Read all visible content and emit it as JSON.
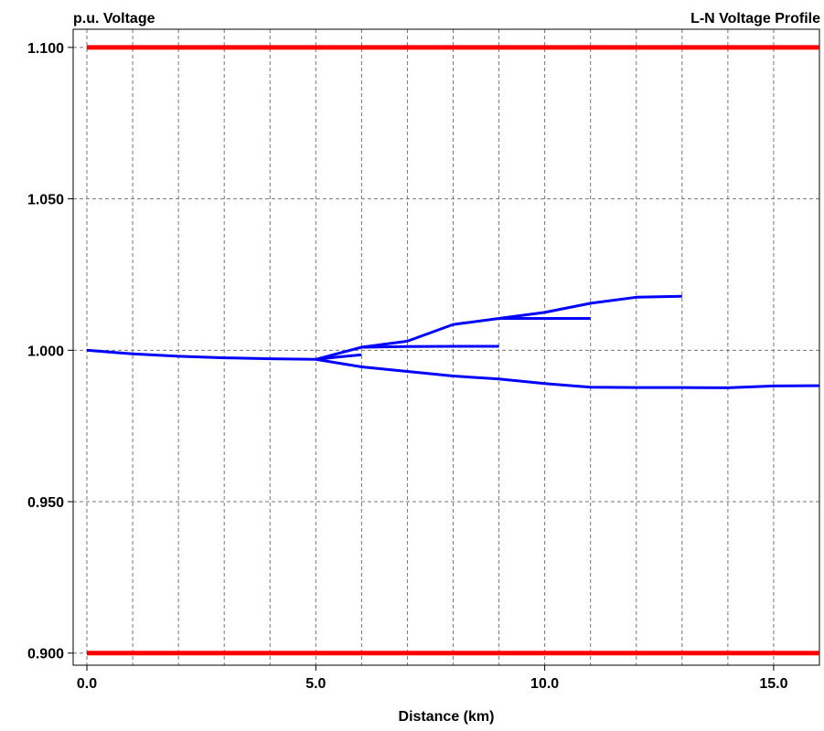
{
  "chart_data": {
    "type": "line",
    "title": "L-N Voltage Profile",
    "ylabel": "p.u. Voltage",
    "xlabel": "Distance (km)",
    "xlim": [
      -0.3,
      16.0
    ],
    "ylim": [
      0.896,
      1.106
    ],
    "grid": true,
    "x_ticks": [
      0,
      5,
      10,
      15
    ],
    "x_tick_labels": [
      "0.0",
      "5.0",
      "10.0",
      "15.0"
    ],
    "x_minor_gridlines": [
      1,
      2,
      3,
      4,
      6,
      7,
      8,
      9,
      11,
      12,
      13,
      14
    ],
    "y_ticks": [
      0.9,
      0.95,
      1.0,
      1.05,
      1.1
    ],
    "y_tick_labels": [
      "0.900",
      "0.950",
      "1.000",
      "1.050",
      "1.100"
    ],
    "limit_lines": [
      {
        "y": 1.1,
        "color": "#ff0000"
      },
      {
        "y": 0.9,
        "color": "#ff0000"
      }
    ],
    "series_color": "#0000ff",
    "series": [
      {
        "x": [
          0,
          1,
          2,
          3,
          4,
          5
        ],
        "y": [
          1.0,
          0.9988,
          0.998,
          0.9975,
          0.9972,
          0.997
        ]
      },
      {
        "x": [
          5,
          5.5,
          6
        ],
        "y": [
          0.997,
          0.9978,
          0.9985
        ]
      },
      {
        "x": [
          5,
          6,
          7,
          8,
          9,
          10,
          11,
          12,
          13
        ],
        "y": [
          0.997,
          1.001,
          1.003,
          1.0085,
          1.0105,
          1.0125,
          1.0155,
          1.0175,
          1.0178
        ]
      },
      {
        "x": [
          6,
          7,
          8,
          9
        ],
        "y": [
          1.001,
          1.0012,
          1.0013,
          1.0013
        ]
      },
      {
        "x": [
          9,
          10,
          11
        ],
        "y": [
          1.0105,
          1.0105,
          1.0105
        ]
      },
      {
        "x": [
          5,
          6,
          7,
          8,
          9,
          10,
          11,
          12,
          13,
          14,
          15,
          16
        ],
        "y": [
          0.997,
          0.9945,
          0.993,
          0.9915,
          0.9905,
          0.989,
          0.9878,
          0.9877,
          0.9877,
          0.9876,
          0.9882,
          0.9883
        ]
      }
    ]
  }
}
